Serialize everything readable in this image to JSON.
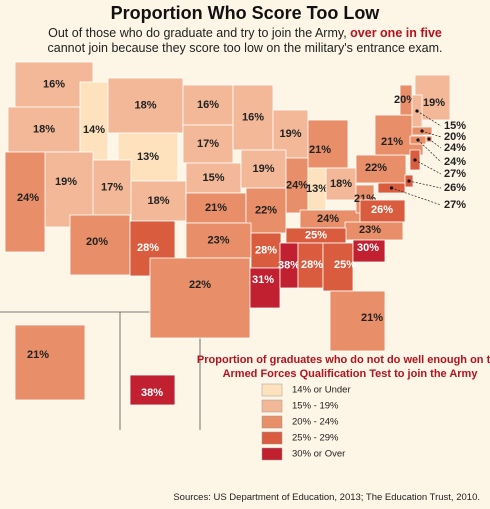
{
  "header": {
    "title": "Proportion Who Score Too Low",
    "subtitle": {
      "before": "Out of those who do graduate and try to join the Army,",
      "highlight": "over one in five",
      "after": "cannot join because they score too low on the military's entrance exam."
    }
  },
  "states": [
    {
      "label": "16%",
      "color": "#f3b898"
    },
    {
      "label": "18%",
      "color": "#f3b898"
    },
    {
      "label": "14%",
      "color": "#fde2bd"
    },
    {
      "label": "18%",
      "color": "#f3b898"
    },
    {
      "label": "13%",
      "color": "#fde2bd"
    },
    {
      "label": "16%",
      "color": "#f3b898"
    },
    {
      "label": "17%",
      "color": "#f3b898"
    },
    {
      "label": "16%",
      "color": "#f3b898"
    },
    {
      "label": "19%",
      "color": "#f3b898"
    },
    {
      "label": "21%",
      "color": "#e88e68"
    },
    {
      "label": "19%",
      "color": "#f3b898"
    },
    {
      "label": "24%",
      "color": "#e88e68"
    },
    {
      "label": "17%",
      "color": "#f3b898"
    },
    {
      "label": "18%",
      "color": "#f3b898"
    },
    {
      "label": "15%",
      "color": "#f3b898"
    },
    {
      "label": "19%",
      "color": "#f3b898"
    },
    {
      "label": "24%",
      "color": "#e88e68"
    },
    {
      "label": "13%",
      "color": "#fde2bd"
    },
    {
      "label": "18%",
      "color": "#f3b898"
    },
    {
      "label": "20%",
      "color": "#e88e68"
    },
    {
      "label": "28%",
      "color": "#d95c3e"
    },
    {
      "label": "21%",
      "color": "#e88e68"
    },
    {
      "label": "22%",
      "color": "#e88e68"
    },
    {
      "label": "24%",
      "color": "#e88e68"
    },
    {
      "label": "21%",
      "color": "#e88e68"
    },
    {
      "label": "22%",
      "color": "#e88e68"
    },
    {
      "label": "26%",
      "color": "#d95c3e"
    },
    {
      "label": "23%",
      "color": "#e88e68"
    },
    {
      "label": "25%",
      "color": "#d95c3e"
    },
    {
      "label": "23%",
      "color": "#e88e68"
    },
    {
      "label": "28%",
      "color": "#d95c3e"
    },
    {
      "label": "22%",
      "color": "#e88e68"
    },
    {
      "label": "31%",
      "color": "#c0202f"
    },
    {
      "label": "38%",
      "color": "#c0202f"
    },
    {
      "label": "28%",
      "color": "#d95c3e"
    },
    {
      "label": "25%",
      "color": "#d95c3e"
    },
    {
      "label": "30%",
      "color": "#c0202f"
    },
    {
      "label": "21%",
      "color": "#e88e68"
    },
    {
      "label": "21%",
      "color": "#e88e68"
    },
    {
      "label": "20%",
      "color": "#e88e68"
    },
    {
      "label": "19%",
      "color": "#f3b898"
    },
    {
      "label": "15%",
      "color": "#f3b898"
    },
    {
      "label": "20%",
      "color": "#e88e68"
    },
    {
      "label": "24%",
      "color": "#e88e68"
    },
    {
      "label": "24%",
      "color": "#e88e68"
    },
    {
      "label": "27%",
      "color": "#d95c3e"
    },
    {
      "label": "26%",
      "color": "#d95c3e"
    },
    {
      "label": "27%",
      "color": "#d95c3e"
    },
    {
      "label": "21%",
      "color": "#e88e68"
    },
    {
      "label": "38%",
      "color": "#c0202f"
    }
  ],
  "legend": {
    "title": "Proportion of graduates who do not do well enough on the Armed Forces Qualification Test to join the Army",
    "items": [
      {
        "label": "14% or Under",
        "color": "#fde2bd"
      },
      {
        "label": "15% - 19%",
        "color": "#f3b898"
      },
      {
        "label": "20% - 24%",
        "color": "#e88e68"
      },
      {
        "label": "25% - 29%",
        "color": "#d95c3e"
      },
      {
        "label": "30% or Over",
        "color": "#c0202f"
      }
    ]
  },
  "source": "Sources: US Department of Education, 2013; The Education Trust, 2010."
}
